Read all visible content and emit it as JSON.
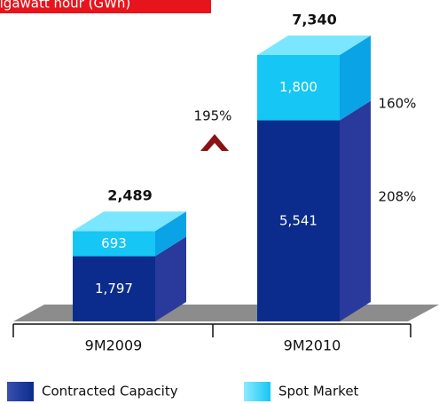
{
  "chart_data": {
    "type": "bar",
    "stacked": true,
    "title": "Gigawatt hour (GWh)",
    "categories": [
      "9M2009",
      "9M2010"
    ],
    "series": [
      {
        "name": "Contracted Capacity",
        "color": "#0b2c8c",
        "values": [
          1797,
          5541
        ],
        "value_labels": [
          "1,797",
          "5,541"
        ]
      },
      {
        "name": "Spot Market",
        "color": "#16c6f4",
        "values": [
          693,
          1800
        ],
        "value_labels": [
          "693",
          "1,800"
        ]
      }
    ],
    "totals": [
      2489,
      7340
    ],
    "total_labels": [
      "2,489",
      "7,340"
    ],
    "annotations": [
      "195%",
      "160%",
      "208%"
    ],
    "legend": "bottom"
  }
}
